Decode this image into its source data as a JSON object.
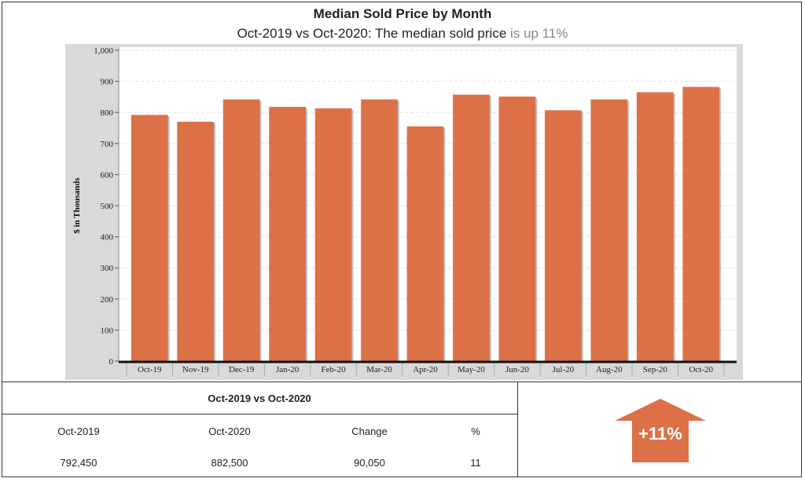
{
  "header": {
    "title": "Median Sold Price by Month",
    "subtitle_main": "Oct-2019 vs Oct-2020: The median sold price",
    "subtitle_trend": "is up 11%"
  },
  "chart_data": {
    "type": "bar",
    "categories": [
      "Oct-19",
      "Nov-19",
      "Dec-19",
      "Jan-20",
      "Feb-20",
      "Mar-20",
      "Apr-20",
      "May-20",
      "Jun-20",
      "Jul-20",
      "Aug-20",
      "Sep-20",
      "Oct-20"
    ],
    "values": [
      792,
      770,
      842,
      818,
      813,
      842,
      755,
      857,
      851,
      807,
      842,
      865,
      882
    ],
    "ylabel": "$ in Thousands",
    "ylim": [
      0,
      1000
    ],
    "yticks": [
      "0",
      "100",
      "200",
      "300",
      "400",
      "500",
      "600",
      "700",
      "800",
      "900",
      "1,000"
    ],
    "grid": true,
    "bar_color": "#dc7147"
  },
  "summary": {
    "title": "Oct-2019 vs Oct-2020",
    "headers": [
      "Oct-2019",
      "Oct-2020",
      "Change",
      "%"
    ],
    "values": [
      "792,450",
      "882,500",
      "90,050",
      "11"
    ]
  },
  "badge": {
    "label": "+11%",
    "color": "#dc7147",
    "icon": "up-arrow-icon"
  }
}
